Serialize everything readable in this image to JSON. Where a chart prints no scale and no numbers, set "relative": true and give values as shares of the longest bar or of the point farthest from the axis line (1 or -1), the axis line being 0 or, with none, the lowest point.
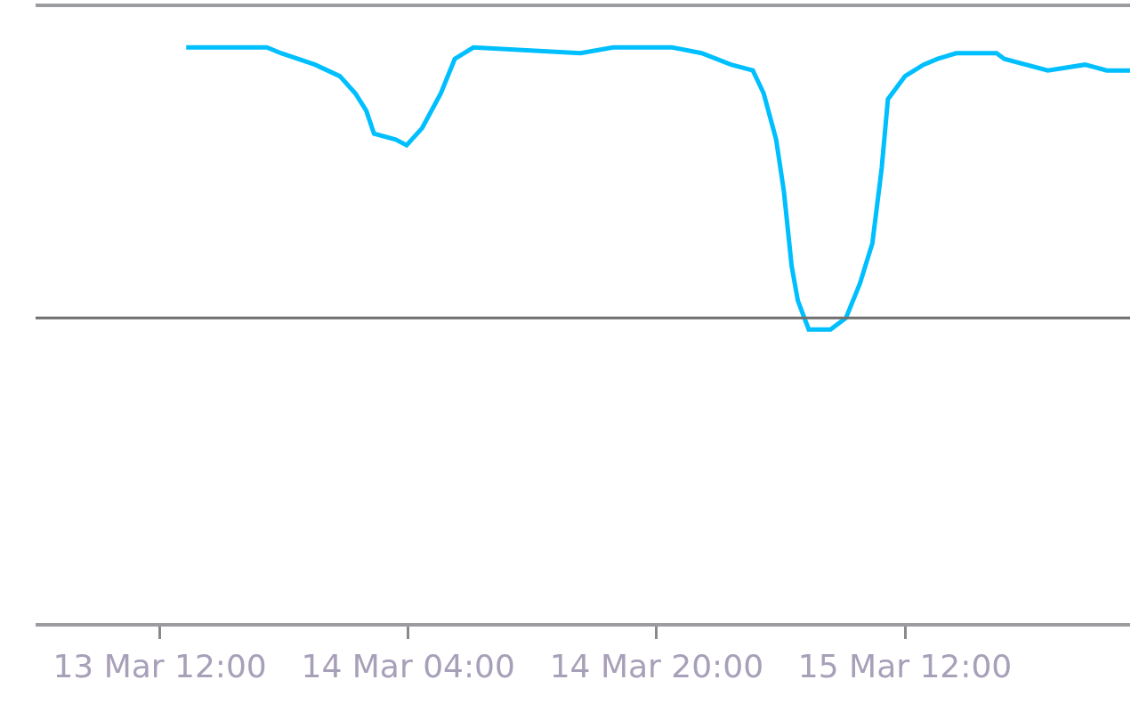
{
  "chart_data": {
    "type": "line",
    "relative": true,
    "xlim": [
      "--03-13T04:00",
      "--03-16T02:30"
    ],
    "xticks": [
      {
        "value": "--03-13T12:00",
        "label": "13 Mar 12:00"
      },
      {
        "value": "--03-14T04:00",
        "label": "14 Mar 04:00"
      },
      {
        "value": "--03-14T20:00",
        "label": "14 Mar 20:00"
      },
      {
        "value": "--03-15T12:00",
        "label": "15 Mar 12:00"
      }
    ],
    "x": [
      "--03-13T13:42",
      "--03-13T18:54",
      "--03-13T19:48",
      "--03-13T22:00",
      "--03-13T23:36",
      "--03-14T00:36",
      "--03-14T01:18",
      "--03-14T01:48",
      "--03-14T03:12",
      "--03-14T03:54",
      "--03-14T04:54",
      "--03-14T06:06",
      "--03-14T07:00",
      "--03-14T08:12",
      "--03-14T15:06",
      "--03-14T17:12",
      "--03-14T21:00",
      "--03-14T22:54",
      "--03-15T00:48",
      "--03-15T02:12",
      "--03-15T02:54",
      "--03-15T03:42",
      "--03-15T04:12",
      "--03-15T04:42",
      "--03-15T05:06",
      "--03-15T05:48",
      "--03-15T07:12",
      "--03-15T08:12",
      "--03-15T09:06",
      "--03-15T09:54",
      "--03-15T10:30",
      "--03-15T10:54",
      "--03-15T12:00",
      "--03-15T13:12",
      "--03-15T14:06",
      "--03-15T15:18",
      "--03-15T17:54",
      "--03-15T18:24",
      "--03-15T21:12",
      "--03-15T23:36",
      "--03-16T01:00",
      "--03-16T02:30"
    ],
    "series": [
      {
        "color": "#00bfff",
        "values": [
          1.0,
          1.0,
          0.99,
          0.97,
          0.95,
          0.92,
          0.89,
          0.85,
          0.84,
          0.83,
          0.86,
          0.92,
          0.98,
          1.0,
          0.99,
          1.0,
          1.0,
          0.99,
          0.97,
          0.96,
          0.92,
          0.84,
          0.75,
          0.62,
          0.56,
          0.51,
          0.51,
          0.53,
          0.59,
          0.66,
          0.79,
          0.91,
          0.95,
          0.97,
          0.98,
          0.99,
          0.99,
          0.98,
          0.96,
          0.97,
          0.96,
          0.96
        ]
      }
    ],
    "ref_lines": [
      {
        "axis": "y",
        "value": 0.53,
        "color": "#6e6e6e"
      }
    ],
    "marker": "none",
    "line_style": "solid"
  }
}
